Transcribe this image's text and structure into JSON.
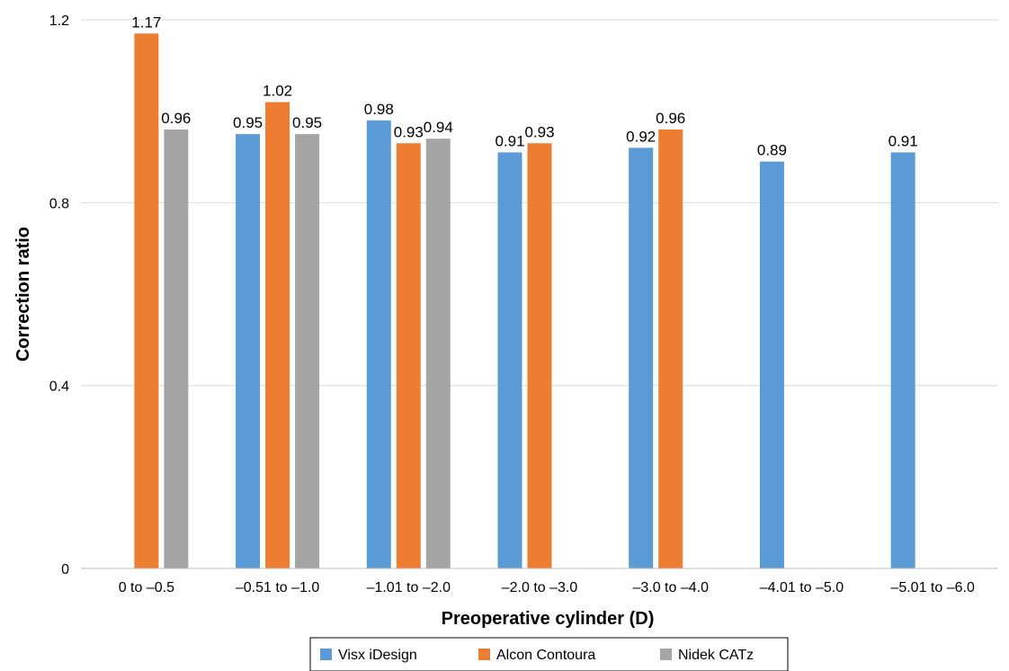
{
  "chart_data": {
    "type": "bar",
    "title": "",
    "xlabel": "Preoperative cylinder (D)",
    "ylabel": "Correction ratio",
    "ylim": [
      0,
      1.2
    ],
    "yticks": [
      0,
      0.4,
      0.8,
      1.2
    ],
    "ytick_labels": [
      "0",
      "0.4",
      "0.8",
      "1.2"
    ],
    "grid": true,
    "legend_position": "bottom",
    "categories": [
      "0 to –0.5",
      "–0.51 to –1.0",
      "–1.01 to –2.0",
      "–2.0 to –3.0",
      "–3.0 to –4.0",
      "–4.01 to –5.0",
      "–5.01 to –6.0"
    ],
    "series": [
      {
        "name": "Visx iDesign",
        "color": "#5b9bd5",
        "values": [
          null,
          0.95,
          0.98,
          0.91,
          0.92,
          0.89,
          0.91
        ],
        "labels": [
          null,
          "0.95",
          "0.98",
          "0.91",
          "0.92",
          "0.89",
          "0.91"
        ]
      },
      {
        "name": "Alcon Contoura",
        "color": "#ed7d31",
        "values": [
          1.17,
          1.02,
          0.93,
          0.93,
          0.96,
          null,
          null
        ],
        "labels": [
          "1.17",
          "1.02",
          "0.93",
          "0.93",
          "0.96",
          null,
          null
        ]
      },
      {
        "name": "Nidek CATz",
        "color": "#a5a5a5",
        "values": [
          0.96,
          0.95,
          0.94,
          null,
          null,
          null,
          null
        ],
        "labels": [
          "0.96",
          "0.95",
          "0.94",
          null,
          null,
          null,
          null
        ]
      }
    ]
  }
}
